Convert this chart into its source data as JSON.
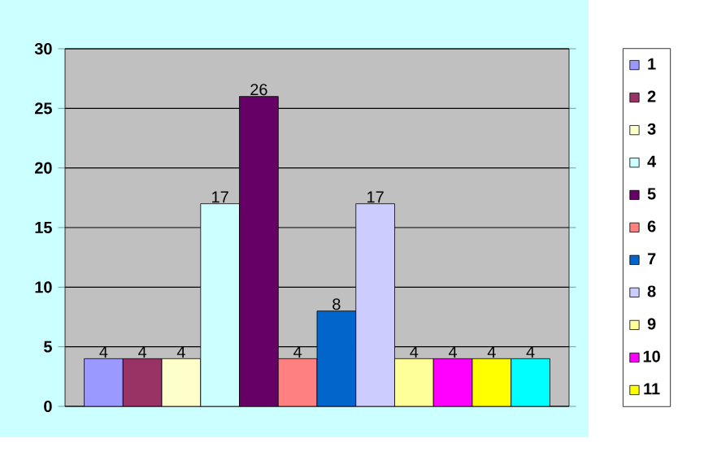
{
  "chart_data": {
    "type": "bar",
    "categories": [
      null
    ],
    "series": [
      {
        "name": "1",
        "color": "#9999ff",
        "values": [
          4
        ]
      },
      {
        "name": "2",
        "color": "#993366",
        "values": [
          4
        ]
      },
      {
        "name": "3",
        "color": "#ffffcc",
        "values": [
          4
        ]
      },
      {
        "name": "4",
        "color": "#ccffff",
        "values": [
          17
        ]
      },
      {
        "name": "5",
        "color": "#660066",
        "values": [
          26
        ]
      },
      {
        "name": "6",
        "color": "#ff8080",
        "values": [
          4
        ]
      },
      {
        "name": "7",
        "color": "#0066cc",
        "values": [
          8
        ]
      },
      {
        "name": "8",
        "color": "#ccccff",
        "values": [
          17
        ]
      },
      {
        "name": "9",
        "color": "#ffff99",
        "values": [
          4
        ]
      },
      {
        "name": "10",
        "color": "#ff00ff",
        "values": [
          4
        ]
      },
      {
        "name": "11",
        "color": "#ffff00",
        "values": [
          4
        ]
      },
      {
        "color": "#00ffff",
        "values": [
          4
        ]
      }
    ],
    "ylim": [
      0,
      30
    ],
    "yticks": [
      0,
      5,
      10,
      15,
      20,
      25,
      30
    ],
    "grid": "y",
    "legend": "right",
    "data_labels": true
  }
}
